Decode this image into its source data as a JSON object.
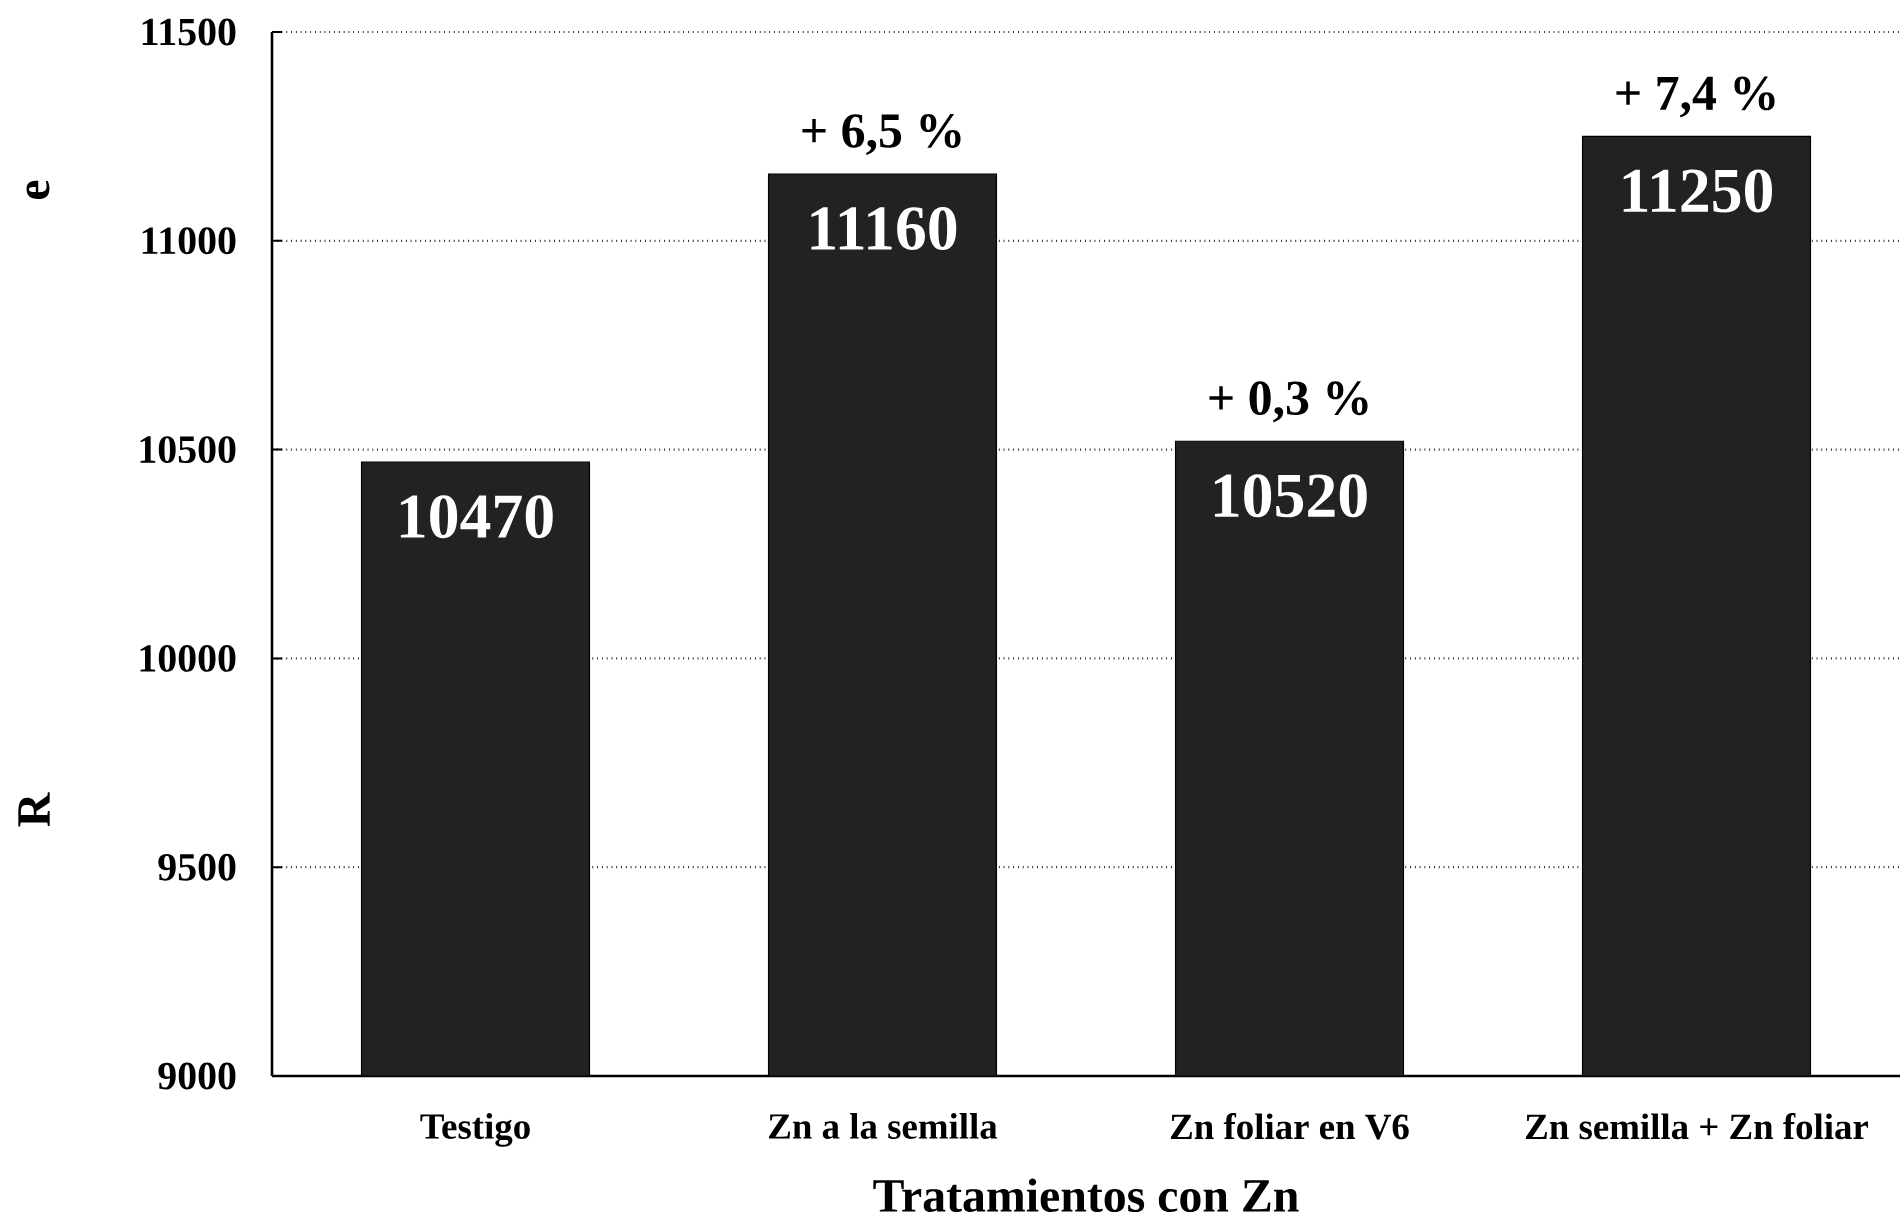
{
  "chart_data": {
    "type": "bar",
    "categories": [
      "Testigo",
      "Zn a la semilla",
      "Zn foliar en V6",
      "Zn semilla + Zn foliar"
    ],
    "values": [
      10470,
      11160,
      10520,
      11250
    ],
    "color": "#222222",
    "data_labels": true,
    "xlabel": "Tratamientos con Zn",
    "ylabel": "R",
    "ylim": [
      9000,
      11500
    ],
    "yticks": [
      9000,
      9500,
      10000,
      10500,
      11000,
      11500
    ],
    "grid": "y",
    "annotations": [
      {
        "text": "+ 6,5 %",
        "x": "Zn a la semilla",
        "y": 11160
      },
      {
        "text": "+ 0,3 %",
        "x": "Zn foliar en V6",
        "y": 10520
      },
      {
        "text": "+ 7,4 %",
        "x": "Zn semilla + Zn foliar",
        "y": 11250
      },
      "e"
    ]
  }
}
